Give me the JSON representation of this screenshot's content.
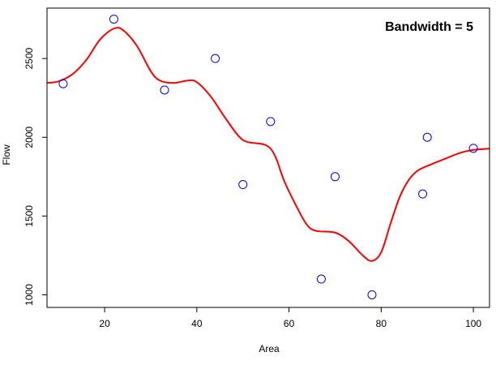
{
  "chart_data": {
    "type": "scatter",
    "title": "",
    "annotation": "Bandwidth = 5",
    "xlabel": "Area",
    "ylabel": "Flow",
    "xlim": [
      7.5,
      103.5
    ],
    "ylim": [
      920,
      2820
    ],
    "x_ticks": [
      20,
      40,
      60,
      80,
      100
    ],
    "y_ticks": [
      1000,
      1500,
      2000,
      2500
    ],
    "grid": false,
    "legend": "none",
    "series": [
      {
        "type": "scatter",
        "color": "#0000ff",
        "points": [
          {
            "x": 11,
            "y": 2340
          },
          {
            "x": 22,
            "y": 2750
          },
          {
            "x": 33,
            "y": 2300
          },
          {
            "x": 44,
            "y": 2500
          },
          {
            "x": 50,
            "y": 1700
          },
          {
            "x": 56,
            "y": 2100
          },
          {
            "x": 67,
            "y": 1100
          },
          {
            "x": 70,
            "y": 1750
          },
          {
            "x": 78,
            "y": 1000
          },
          {
            "x": 89,
            "y": 1640
          },
          {
            "x": 90,
            "y": 2000
          },
          {
            "x": 100,
            "y": 1930
          }
        ]
      },
      {
        "type": "line",
        "color": "#ff0000",
        "points": [
          {
            "x": 7.5,
            "y": 2345
          },
          {
            "x": 10,
            "y": 2355
          },
          {
            "x": 13,
            "y": 2400
          },
          {
            "x": 16,
            "y": 2490
          },
          {
            "x": 19,
            "y": 2620
          },
          {
            "x": 22,
            "y": 2690
          },
          {
            "x": 24,
            "y": 2680
          },
          {
            "x": 27,
            "y": 2580
          },
          {
            "x": 30,
            "y": 2420
          },
          {
            "x": 32,
            "y": 2360
          },
          {
            "x": 35,
            "y": 2345
          },
          {
            "x": 38,
            "y": 2360
          },
          {
            "x": 40,
            "y": 2350
          },
          {
            "x": 43,
            "y": 2260
          },
          {
            "x": 46,
            "y": 2130
          },
          {
            "x": 49,
            "y": 2010
          },
          {
            "x": 51,
            "y": 1970
          },
          {
            "x": 55,
            "y": 1950
          },
          {
            "x": 57,
            "y": 1880
          },
          {
            "x": 59,
            "y": 1720
          },
          {
            "x": 62,
            "y": 1540
          },
          {
            "x": 64,
            "y": 1440
          },
          {
            "x": 66,
            "y": 1405
          },
          {
            "x": 70,
            "y": 1395
          },
          {
            "x": 73,
            "y": 1340
          },
          {
            "x": 76,
            "y": 1250
          },
          {
            "x": 78,
            "y": 1215
          },
          {
            "x": 80,
            "y": 1270
          },
          {
            "x": 82,
            "y": 1450
          },
          {
            "x": 84,
            "y": 1620
          },
          {
            "x": 86,
            "y": 1730
          },
          {
            "x": 88,
            "y": 1790
          },
          {
            "x": 91,
            "y": 1830
          },
          {
            "x": 94,
            "y": 1865
          },
          {
            "x": 97,
            "y": 1900
          },
          {
            "x": 100,
            "y": 1920
          },
          {
            "x": 103.5,
            "y": 1928
          }
        ]
      }
    ]
  }
}
